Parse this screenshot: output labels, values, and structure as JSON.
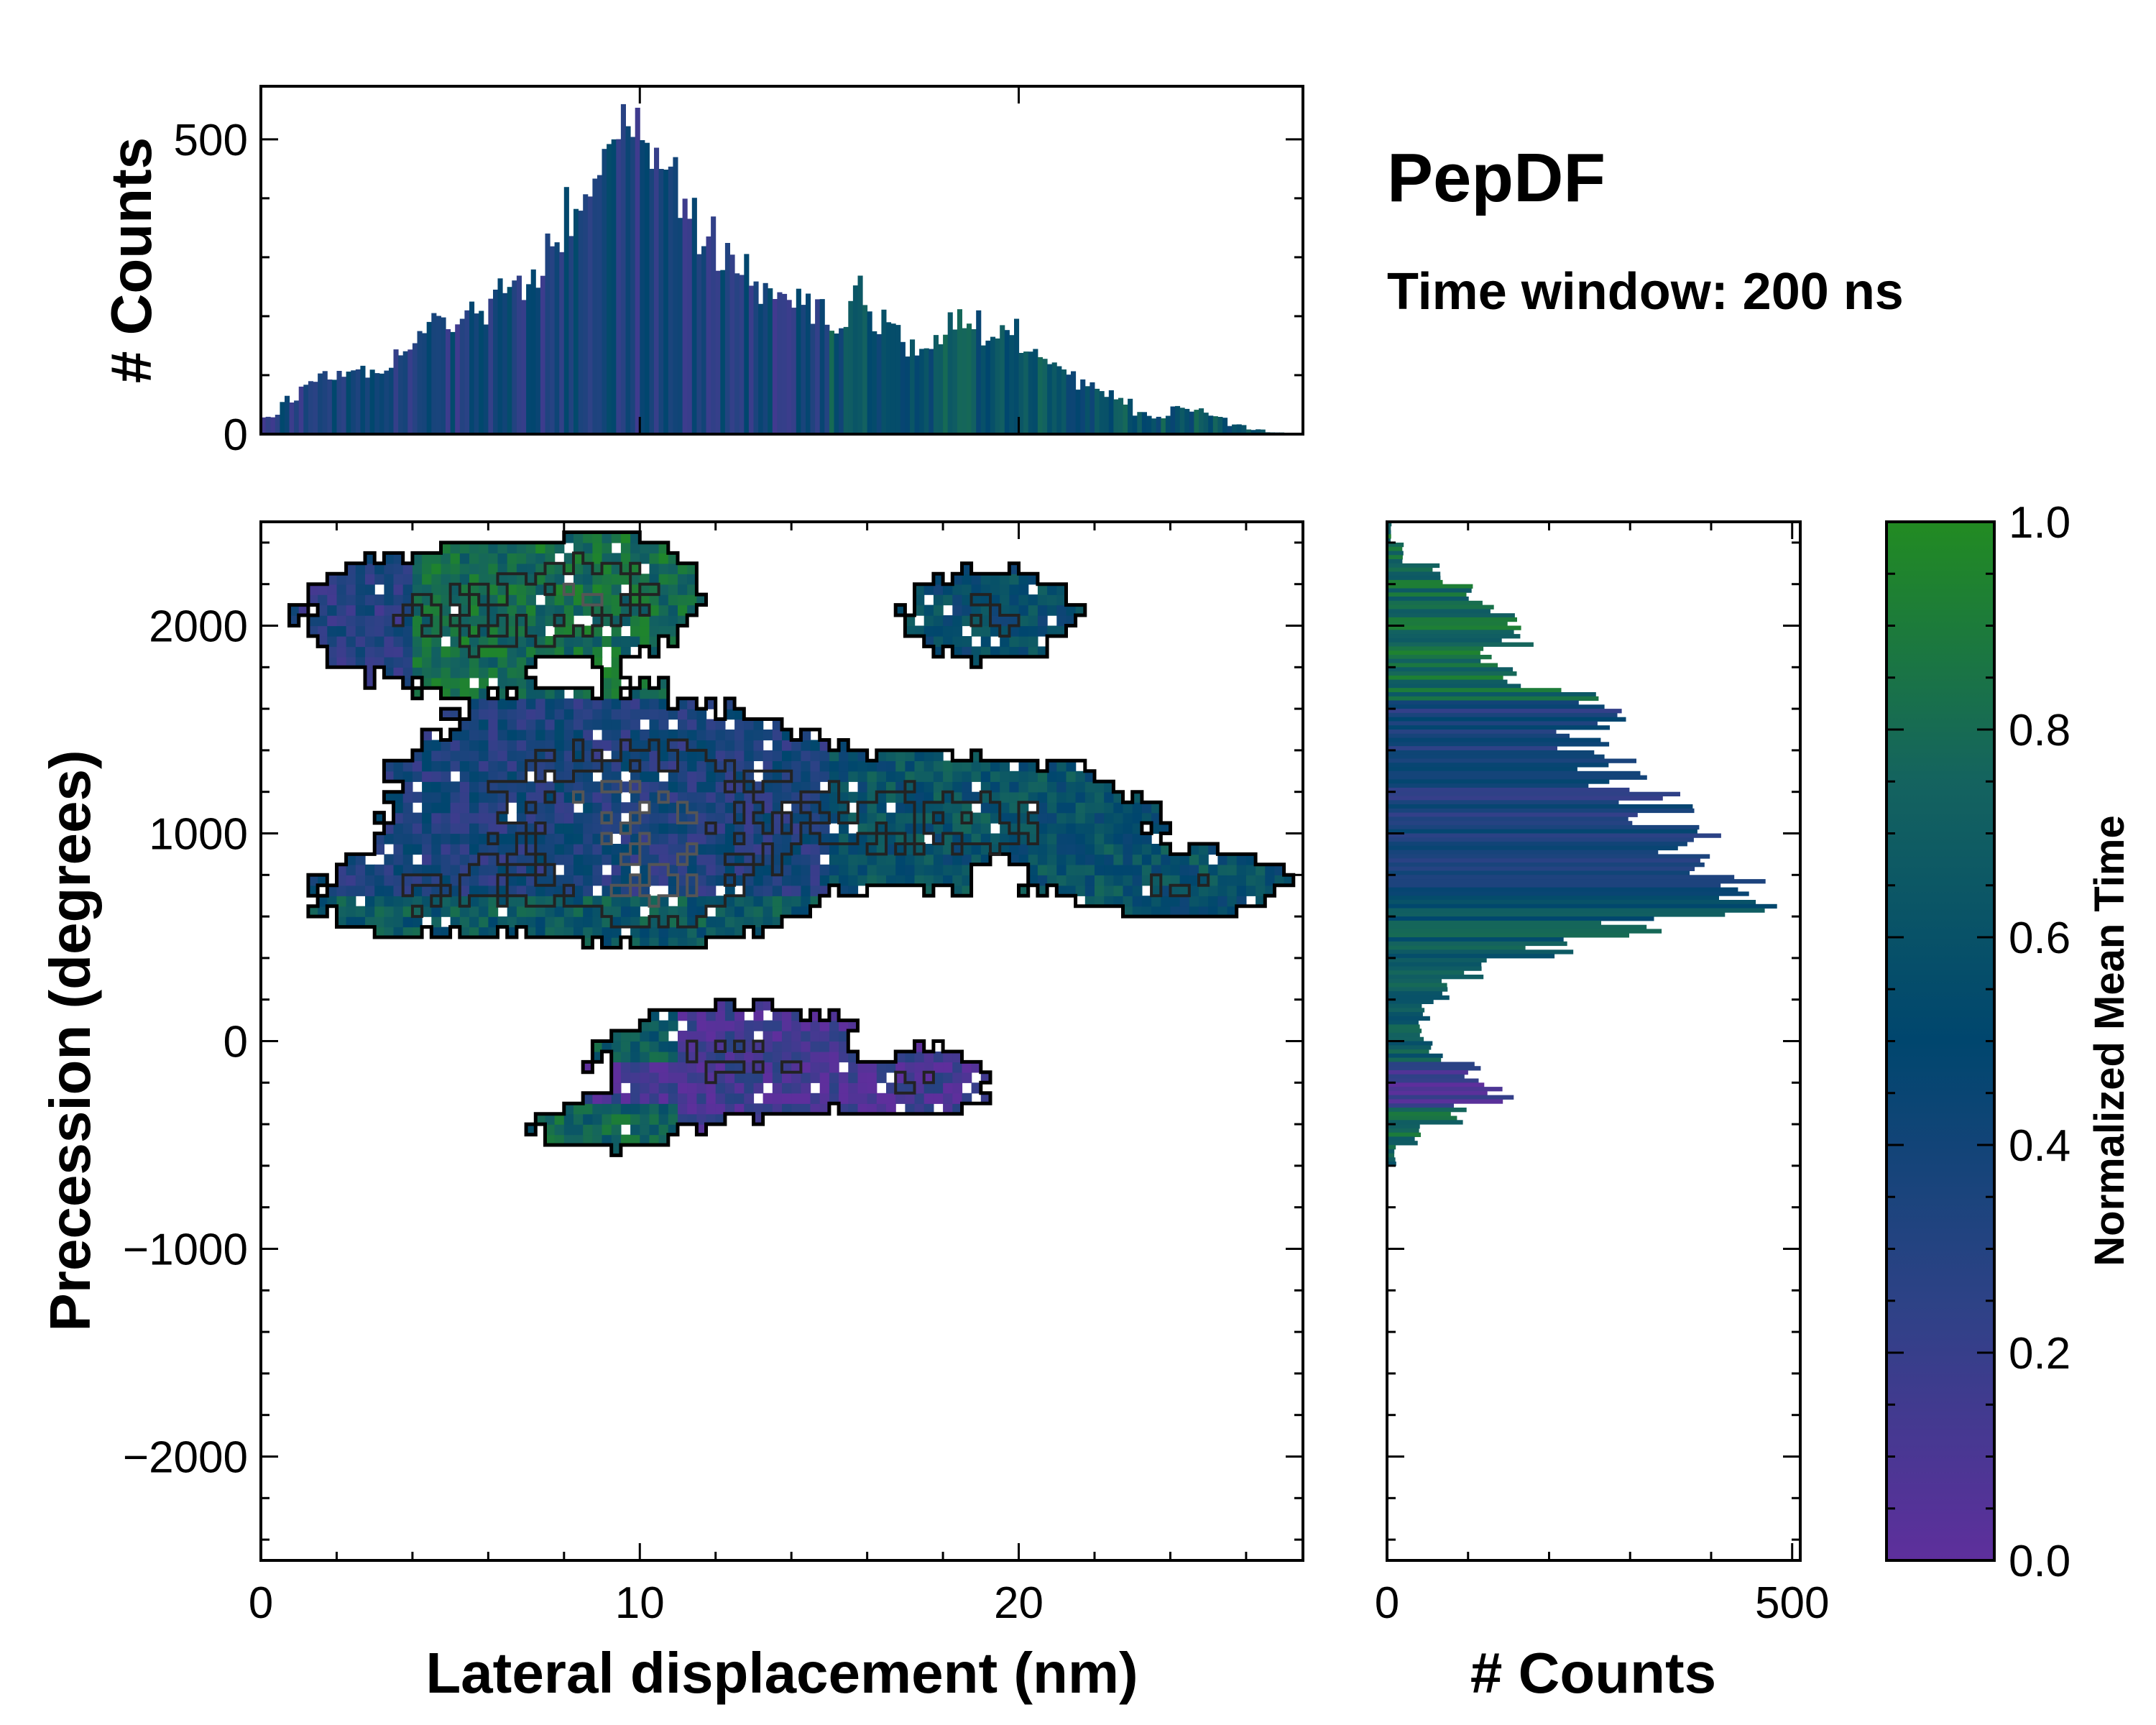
{
  "title": "PepDF",
  "subtitle": "Time window: 200 ns",
  "chart_data": [
    {
      "type": "heatmap",
      "role": "main-2d-histogram",
      "xlabel": "Lateral displacement (nm)",
      "ylabel": "Precession (degrees)",
      "xlim": [
        0,
        27.5
      ],
      "ylim": [
        -2500,
        2500
      ],
      "xticks": [
        0,
        10,
        20
      ],
      "xtick_labels": [
        "0",
        "10",
        "20"
      ],
      "yticks": [
        -2000,
        -1000,
        0,
        1000,
        2000
      ],
      "ytick_labels": [
        "−2000",
        "−1000",
        "0",
        "1000",
        "2000"
      ],
      "color_meaning": "Normalized Mean Time",
      "regions": [
        {
          "name": "upper-left lobe",
          "x": [
            0,
            11.5
          ],
          "y": [
            1600,
            2450
          ],
          "mean_time": 0.85
        },
        {
          "name": "central core",
          "x": [
            3,
            16
          ],
          "y": [
            700,
            1600
          ],
          "mean_time": 0.35
        },
        {
          "name": "dense peak",
          "x": [
            8,
            13
          ],
          "y": [
            500,
            900
          ],
          "mean_time": 0.55
        },
        {
          "name": "right arm",
          "x": [
            15,
            27.5
          ],
          "y": [
            400,
            1300
          ],
          "mean_time": 0.6
        },
        {
          "name": "upper-right lobe",
          "x": [
            17,
            22
          ],
          "y": [
            1700,
            2350
          ],
          "mean_time": 0.55
        },
        {
          "name": "lower tail",
          "x": [
            6,
            20
          ],
          "y": [
            -580,
            300
          ],
          "mean_time": 0.15
        }
      ]
    },
    {
      "type": "bar",
      "role": "x-marginal-histogram",
      "ylabel": "# Counts",
      "xlim": [
        0,
        27.5
      ],
      "ylim": [
        0,
        590
      ],
      "yticks": [
        0,
        500
      ],
      "ytick_labels": [
        "0",
        "500"
      ],
      "x": [
        0.25,
        0.75,
        1.25,
        1.75,
        2.25,
        2.75,
        3.25,
        3.75,
        4.25,
        4.75,
        5.25,
        5.75,
        6.25,
        6.75,
        7.25,
        7.75,
        8.25,
        8.75,
        9.25,
        9.75,
        10.25,
        10.75,
        11.25,
        11.75,
        12.25,
        12.75,
        13.25,
        13.75,
        14.25,
        14.75,
        15.25,
        15.75,
        16.25,
        16.75,
        17.25,
        17.75,
        18.25,
        18.75,
        19.25,
        19.75,
        20.25,
        20.75,
        21.25,
        21.75,
        22.25,
        22.75,
        23.25,
        23.75,
        24.25,
        24.75,
        25.25,
        25.75,
        26.25,
        26.75,
        27.25
      ],
      "values": [
        30,
        60,
        90,
        100,
        100,
        105,
        115,
        140,
        170,
        185,
        195,
        210,
        240,
        255,
        280,
        320,
        380,
        420,
        470,
        520,
        470,
        420,
        380,
        330,
        300,
        280,
        250,
        220,
        225,
        210,
        190,
        240,
        190,
        170,
        145,
        160,
        190,
        200,
        170,
        175,
        150,
        130,
        110,
        85,
        70,
        55,
        35,
        30,
        45,
        40,
        30,
        15,
        8,
        3,
        0
      ],
      "color_meaning": "Normalized Mean Time"
    },
    {
      "type": "bar",
      "orientation": "horizontal",
      "role": "y-marginal-histogram",
      "xlabel": "# Counts",
      "xlim": [
        0,
        510
      ],
      "ylim": [
        -2500,
        2500
      ],
      "xticks": [
        0,
        500
      ],
      "xtick_labels": [
        "0",
        "500"
      ],
      "y": [
        2450,
        2350,
        2250,
        2150,
        2050,
        1950,
        1850,
        1750,
        1650,
        1550,
        1450,
        1350,
        1250,
        1150,
        1050,
        950,
        850,
        750,
        650,
        550,
        450,
        350,
        250,
        150,
        50,
        -50,
        -150,
        -250,
        -350,
        -450,
        -550
      ],
      "values": [
        5,
        20,
        60,
        110,
        150,
        160,
        120,
        150,
        240,
        260,
        240,
        270,
        290,
        330,
        350,
        380,
        380,
        420,
        450,
        310,
        200,
        110,
        70,
        50,
        40,
        60,
        110,
        140,
        90,
        40,
        10
      ],
      "color_meaning": "Normalized Mean Time"
    },
    {
      "type": "colorbar",
      "label": "Normalized Mean Time",
      "range": [
        0,
        1
      ],
      "ticks": [
        0.0,
        0.2,
        0.4,
        0.6,
        0.8,
        1.0
      ],
      "tick_labels": [
        "0.0",
        "0.2",
        "0.4",
        "0.6",
        "0.8",
        "1.0"
      ],
      "colors": [
        "#5e2f9c",
        "#2d4286",
        "#00466e",
        "#14635f",
        "#228b22"
      ]
    }
  ]
}
